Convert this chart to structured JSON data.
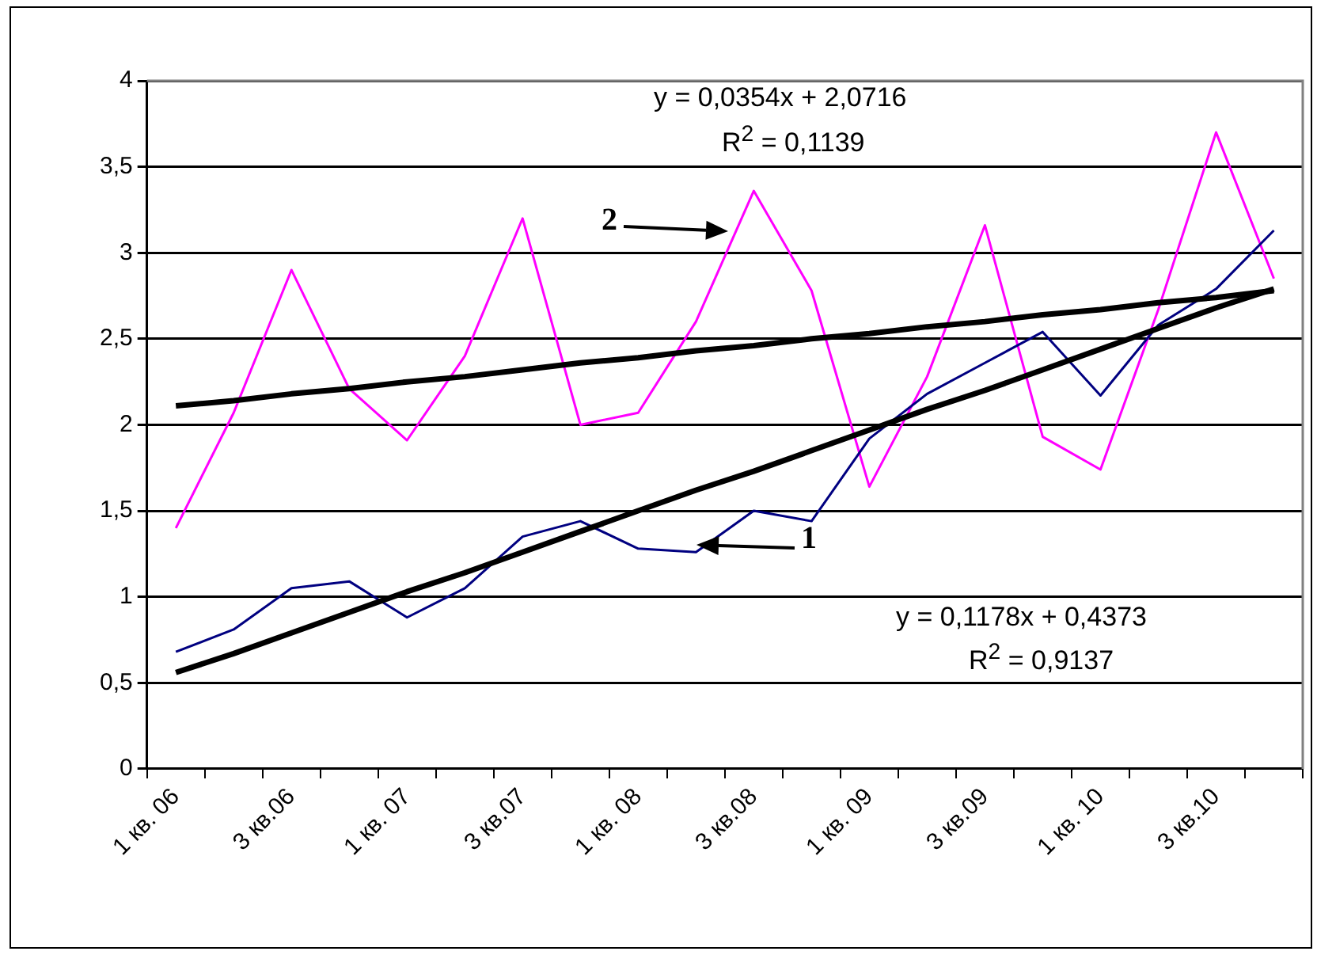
{
  "chart_data": {
    "type": "line",
    "categories": [
      "1 кв. 06",
      null,
      "3 кв.06",
      null,
      "1 кв. 07",
      null,
      "3 кв.07",
      null,
      "1 кв. 08",
      null,
      "3 кв.08",
      null,
      "1 кв. 09",
      null,
      "3 кв.09",
      null,
      "1 кв. 10",
      null,
      "3 кв.10",
      null
    ],
    "series": [
      {
        "name": "1",
        "color": "#000080",
        "values": [
          0.68,
          0.81,
          1.05,
          1.09,
          0.88,
          1.05,
          1.35,
          1.44,
          1.28,
          1.26,
          1.5,
          1.44,
          1.92,
          2.18,
          2.36,
          2.54,
          2.17,
          2.58,
          2.79,
          3.13
        ]
      },
      {
        "name": "2",
        "color": "#ff00ff",
        "values": [
          1.4,
          2.07,
          2.9,
          2.21,
          1.91,
          2.4,
          3.2,
          2.0,
          2.07,
          2.6,
          3.36,
          2.78,
          1.64,
          2.28,
          3.16,
          1.93,
          1.74,
          2.67,
          3.7,
          2.85
        ]
      },
      {
        "type": "line",
        "color": "#000000",
        "values": [
          0.56,
          0.67,
          0.79,
          0.91,
          1.03,
          1.14,
          1.26,
          1.38,
          1.5,
          1.62,
          1.73,
          1.85,
          1.97,
          2.09,
          2.2,
          2.32,
          2.44,
          2.56,
          2.68,
          2.79
        ]
      },
      {
        "type": "line",
        "color": "#000000",
        "values": [
          2.11,
          2.14,
          2.18,
          2.21,
          2.25,
          2.28,
          2.32,
          2.36,
          2.39,
          2.43,
          2.46,
          2.5,
          2.53,
          2.57,
          2.6,
          2.64,
          2.67,
          2.71,
          2.74,
          2.78
        ]
      }
    ],
    "ylim": [
      0,
      4
    ],
    "yticks": [
      0,
      {
        "value": 0.5,
        "label": "0,5"
      },
      1,
      {
        "value": 1.5,
        "label": "1,5"
      },
      2,
      {
        "value": 2.5,
        "label": "2,5"
      },
      3,
      {
        "value": 3.5,
        "label": "3,5"
      },
      4
    ],
    "grid": "y",
    "legend": false,
    "marker": "none",
    "annotations": [
      "y = 0,0354x + 2,0716",
      "R$^{2}$ = 0,1139",
      "y = 0,1178x + 0,4373",
      "R$^{2}$ = 0,9137"
    ]
  }
}
